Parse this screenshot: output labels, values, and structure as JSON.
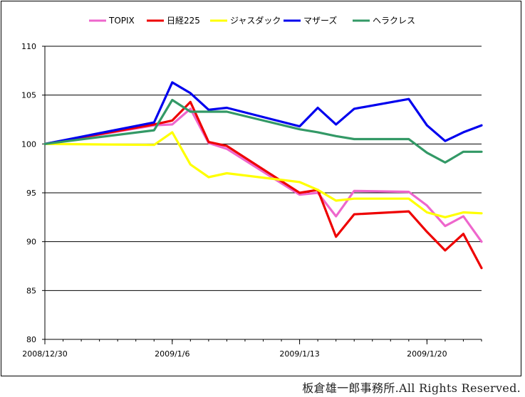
{
  "chart_data": {
    "type": "line",
    "x": [
      "2008/12/30",
      "2009/1/5",
      "2009/1/6",
      "2009/1/7",
      "2009/1/8",
      "2009/1/9",
      "2009/1/13",
      "2009/1/14",
      "2009/1/15",
      "2009/1/16",
      "2009/1/19",
      "2009/1/20",
      "2009/1/21",
      "2009/1/22",
      "2009/1/23"
    ],
    "x_tick_labels": [
      "2008/12/30",
      "2009/1/6",
      "2009/1/13",
      "2009/1/20"
    ],
    "x_tick_positions": [
      "2008/12/30",
      "2009/1/6",
      "2009/1/13",
      "2009/1/20"
    ],
    "ylim": [
      80,
      110
    ],
    "y_ticks": [
      80,
      85,
      90,
      95,
      100,
      105,
      110
    ],
    "grid": true,
    "legend_position": "top",
    "series": [
      {
        "name": "TOPIX",
        "color": "#ee66cc",
        "values": [
          100,
          101.9,
          102.0,
          103.6,
          100.1,
          99.5,
          94.8,
          95.0,
          92.6,
          95.2,
          95.1,
          93.7,
          91.6,
          92.6,
          90.0
        ]
      },
      {
        "name": "日経225",
        "color": "#ee0000",
        "values": [
          100,
          102.0,
          102.4,
          104.3,
          100.2,
          99.8,
          95.0,
          95.3,
          90.5,
          92.8,
          93.1,
          91.0,
          89.1,
          90.8,
          87.3
        ]
      },
      {
        "name": "ジャスダック",
        "color": "#ffff00",
        "values": [
          100,
          99.9,
          101.2,
          97.9,
          96.6,
          97.0,
          96.1,
          95.3,
          94.2,
          94.4,
          94.4,
          93.0,
          92.5,
          93.0,
          92.9
        ]
      },
      {
        "name": "マザーズ",
        "color": "#0000ee",
        "values": [
          100,
          102.2,
          106.3,
          105.2,
          103.5,
          103.7,
          101.8,
          103.7,
          102.0,
          103.6,
          104.6,
          101.9,
          100.3,
          101.2,
          101.9
        ]
      },
      {
        "name": "ヘラクレス",
        "color": "#339966",
        "values": [
          100,
          101.4,
          104.5,
          103.3,
          103.3,
          103.3,
          101.5,
          101.2,
          100.8,
          100.5,
          100.5,
          99.1,
          98.1,
          99.2,
          99.2
        ]
      }
    ]
  },
  "footer": {
    "copyright": "板倉雄一郎事務所.All Rights Reserved."
  }
}
